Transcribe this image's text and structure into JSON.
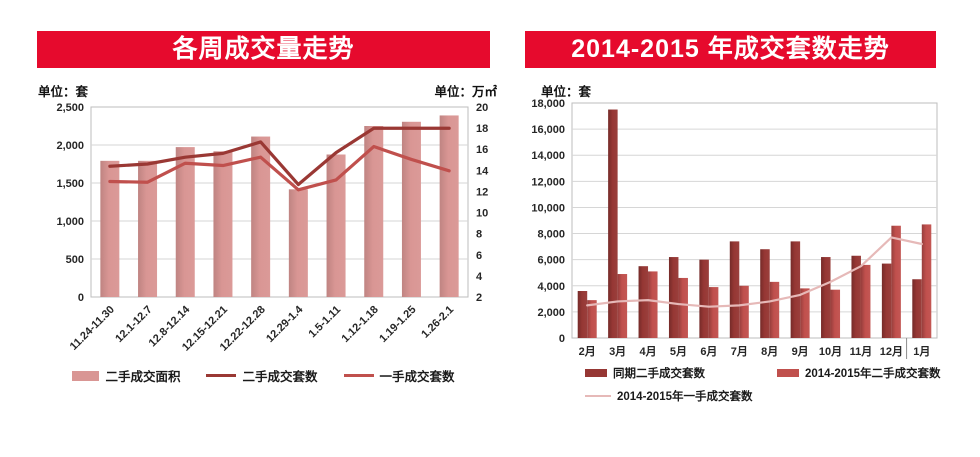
{
  "colors": {
    "banner": "#e60a2d",
    "grid": "#d6d6d6",
    "plot_border": "#bdbdbd",
    "tick_text": "#262626"
  },
  "chart_data": [
    {
      "type": "combo-bar-line",
      "title": "各周成交量走势",
      "unit_left": "单位：套",
      "unit_right": "单位：万㎡",
      "categories": [
        "11.24-11.30",
        "12.1-12.7",
        "12.8-12.14",
        "12.15-12.21",
        "12.22-12.28",
        "12.29-1.4",
        "1.5-1.11",
        "1.12-1.18",
        "1.19-1.25",
        "1.26-2.1"
      ],
      "axes": {
        "left": {
          "min": 0,
          "max": 2500,
          "step": 500
        },
        "right": {
          "min": 2,
          "max": 20,
          "step": 2
        }
      },
      "grid": "on",
      "legend_position": "bottom",
      "series": [
        {
          "name": "二手成交面积",
          "type": "bar",
          "axis": "right",
          "color": "#d99694",
          "values": [
            14.9,
            14.9,
            16.2,
            15.8,
            17.2,
            12.2,
            15.5,
            18.2,
            18.6,
            19.2
          ]
        },
        {
          "name": "二手成交套数",
          "type": "line",
          "axis": "left",
          "color": "#9a3834",
          "values": [
            1720,
            1750,
            1840,
            1890,
            2040,
            1480,
            1900,
            2220,
            2220,
            2220
          ]
        },
        {
          "name": "一手成交套数",
          "type": "line",
          "axis": "left",
          "color": "#c0504d",
          "values": [
            1520,
            1510,
            1760,
            1730,
            1840,
            1410,
            1540,
            1980,
            1810,
            1660
          ]
        }
      ]
    },
    {
      "type": "combo-bar-line",
      "title": "2014-2015 年成交套数走势",
      "unit_left": "单位：套",
      "categories": [
        "2月",
        "3月",
        "4月",
        "5月",
        "6月",
        "7月",
        "8月",
        "9月",
        "10月",
        "11月",
        "12月",
        "1月"
      ],
      "axes": {
        "left": {
          "min": 0,
          "max": 18000,
          "step": 2000
        }
      },
      "grid": "on",
      "legend_position": "bottom",
      "category_divider_before": "1月",
      "series": [
        {
          "name": "同期二手成交套数",
          "type": "bar",
          "axis": "left",
          "color": "#963734",
          "values": [
            3600,
            17500,
            5500,
            6200,
            6000,
            7400,
            6800,
            7400,
            6200,
            6300,
            5700,
            4500
          ]
        },
        {
          "name": "2014-2015年二手成交套数",
          "type": "bar",
          "axis": "left",
          "color": "#c0504d",
          "values": [
            2900,
            4900,
            5100,
            4600,
            3900,
            4000,
            4300,
            3800,
            3700,
            5600,
            8600,
            8700
          ]
        },
        {
          "name": "2014-2015年一手成交套数",
          "type": "line",
          "axis": "left",
          "color": "#e6b9b8",
          "values": [
            2500,
            2800,
            2900,
            2600,
            2400,
            2500,
            2800,
            3300,
            4300,
            5500,
            7700,
            7200
          ]
        }
      ]
    }
  ]
}
